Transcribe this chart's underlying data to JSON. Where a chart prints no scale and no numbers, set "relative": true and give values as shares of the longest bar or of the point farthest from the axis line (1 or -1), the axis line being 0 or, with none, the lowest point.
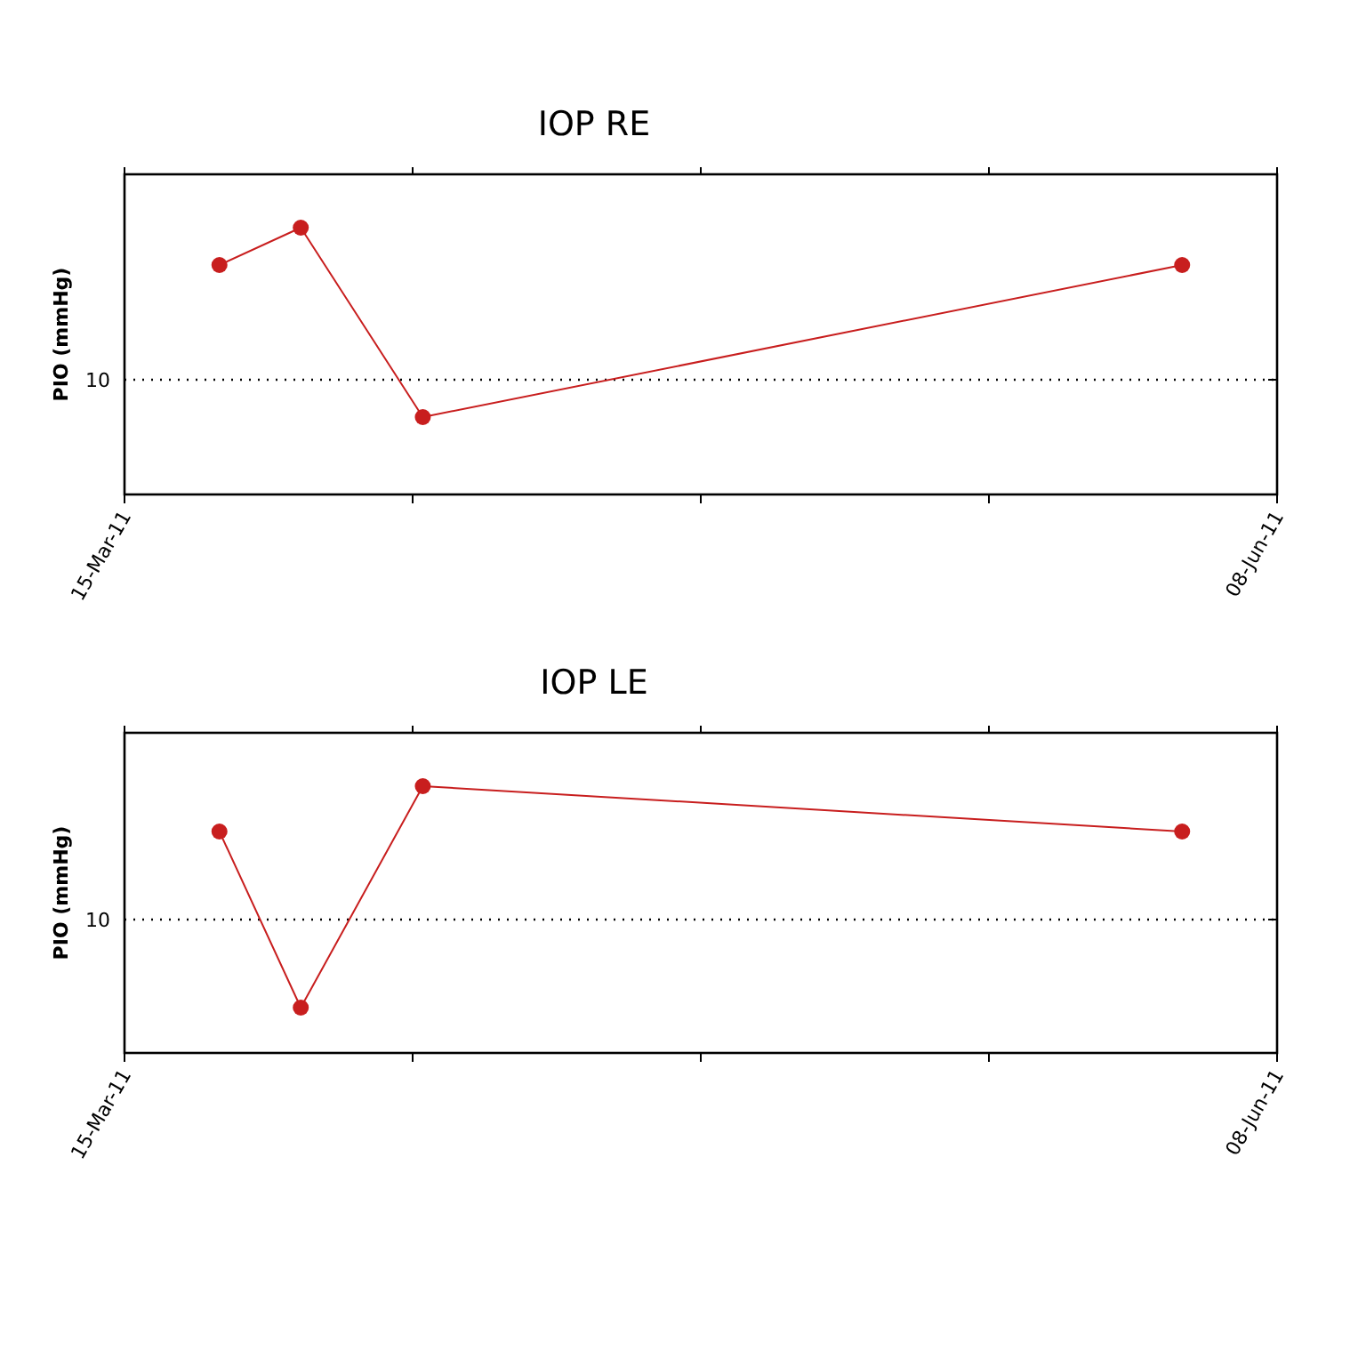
{
  "chart_data": [
    {
      "type": "line",
      "title": "IOP RE",
      "ylabel": "PIO (mmHg)",
      "relative": true,
      "x": [
        "2011-03-22",
        "2011-03-28",
        "2011-04-06",
        "2011-06-01"
      ],
      "series": [
        {
          "color": "#c81e1e",
          "values": [
            0.86,
            1,
            0.29,
            0.86
          ]
        }
      ],
      "xlim": [
        "2011-03-15",
        "2011-06-08"
      ],
      "xticks": [
        {
          "value": "2011-03-15",
          "label": "15-Mar-11"
        },
        {
          "value": "2011-04-05T06:00",
          "label": null
        },
        {
          "value": "2011-04-26T12:00",
          "label": null
        },
        {
          "value": "2011-05-17T18:00",
          "label": null
        },
        {
          "value": "2011-06-08",
          "label": "08-Jun-11"
        }
      ],
      "ref_lines": [
        {
          "axis": "y",
          "value": 0.43,
          "line_style": "dotted",
          "color": "#000000"
        }
      ],
      "annotations": [
        "10"
      ],
      "marker": "circle",
      "grid": false
    },
    {
      "type": "line",
      "title": "IOP LE",
      "ylabel": "PIO (mmHg)",
      "relative": true,
      "x": [
        "2011-03-22",
        "2011-03-28",
        "2011-04-06",
        "2011-06-01"
      ],
      "series": [
        {
          "color": "#c81e1e",
          "values": [
            0.83,
            0.17,
            1,
            0.83
          ]
        }
      ],
      "xlim": [
        "2011-03-15",
        "2011-06-08"
      ],
      "xticks": [
        {
          "value": "2011-03-15",
          "label": "15-Mar-11"
        },
        {
          "value": "2011-04-05T06:00",
          "label": null
        },
        {
          "value": "2011-04-26T12:00",
          "label": null
        },
        {
          "value": "2011-05-17T18:00",
          "label": null
        },
        {
          "value": "2011-06-08",
          "label": "08-Jun-11"
        }
      ],
      "ref_lines": [
        {
          "axis": "y",
          "value": 0.5,
          "line_style": "dotted",
          "color": "#000000"
        }
      ],
      "annotations": [
        "10"
      ],
      "marker": "circle",
      "grid": false
    }
  ]
}
